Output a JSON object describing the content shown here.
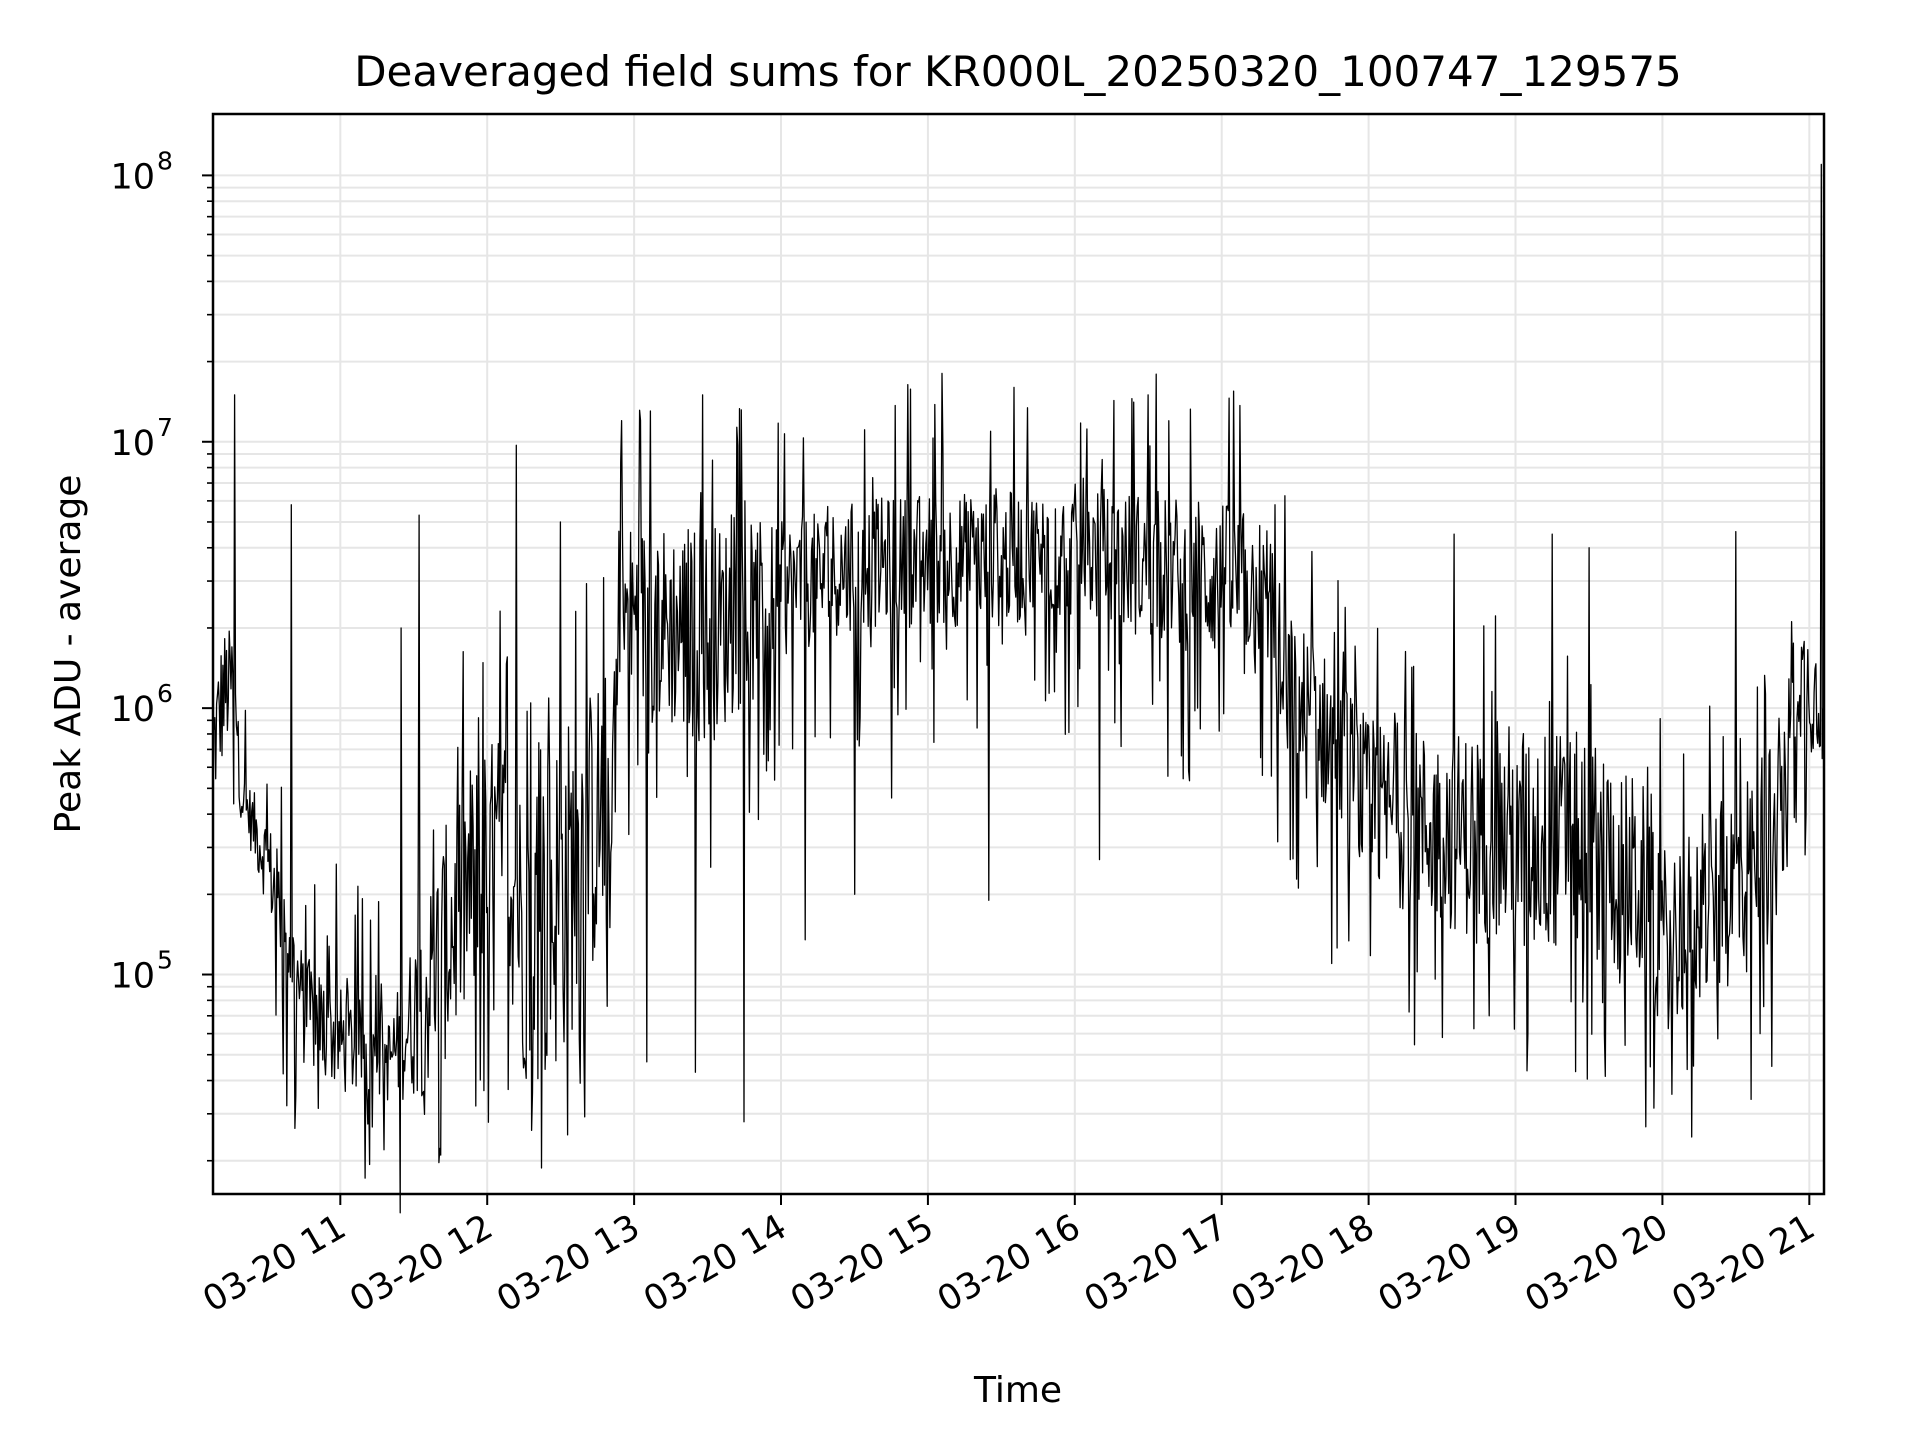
{
  "chart_data": {
    "type": "line",
    "title": "Deaveraged field sums for KR000L_20250320_100747_129575",
    "xlabel": "Time",
    "ylabel": "Peak ADU - average",
    "yscale": "log",
    "grid": true,
    "legend": "none",
    "xlim": [
      "2025-03-20 10:08",
      "2025-03-20 21:06"
    ],
    "ylim": [
      15000,
      170000000
    ],
    "x_ticks": [
      {
        "value": "2025-03-20 11:00",
        "label": "03-20 11"
      },
      {
        "value": "2025-03-20 12:00",
        "label": "03-20 12"
      },
      {
        "value": "2025-03-20 13:00",
        "label": "03-20 13"
      },
      {
        "value": "2025-03-20 14:00",
        "label": "03-20 14"
      },
      {
        "value": "2025-03-20 15:00",
        "label": "03-20 15"
      },
      {
        "value": "2025-03-20 16:00",
        "label": "03-20 16"
      },
      {
        "value": "2025-03-20 17:00",
        "label": "03-20 17"
      },
      {
        "value": "2025-03-20 18:00",
        "label": "03-20 18"
      },
      {
        "value": "2025-03-20 19:00",
        "label": "03-20 19"
      },
      {
        "value": "2025-03-20 20:00",
        "label": "03-20 20"
      },
      {
        "value": "2025-03-20 21:00",
        "label": "03-20 21"
      }
    ],
    "y_ticks": [
      {
        "value": 100000,
        "base": "10",
        "exp": "5"
      },
      {
        "value": 1000000,
        "base": "10",
        "exp": "6"
      },
      {
        "value": 10000000,
        "base": "10",
        "exp": "7"
      },
      {
        "value": 100000000,
        "base": "10",
        "exp": "8"
      }
    ],
    "line_color": "#000000",
    "grid_color": "#e6e6e6",
    "series": [
      {
        "envelope": [
          [
            "2025-03-20 10:08",
            400000,
            1200000
          ],
          [
            "2025-03-20 10:12",
            600000,
            2000000
          ],
          [
            "2025-03-20 10:17",
            900000,
            2000000
          ],
          [
            "2025-03-20 10:19",
            400000,
            600000
          ],
          [
            "2025-03-20 10:30",
            180000,
            400000
          ],
          [
            "2025-03-20 10:37",
            100000,
            250000
          ],
          [
            "2025-03-20 10:45",
            45000,
            120000
          ],
          [
            "2025-03-20 11:00",
            35000,
            90000
          ],
          [
            "2025-03-20 11:20",
            33000,
            70000
          ],
          [
            "2025-03-20 11:35",
            35000,
            200000
          ],
          [
            "2025-03-20 11:50",
            60000,
            600000
          ],
          [
            "2025-03-20 12:08",
            100000,
            900000
          ],
          [
            "2025-03-20 12:15",
            40000,
            500000
          ],
          [
            "2025-03-20 12:25",
            35000,
            800000
          ],
          [
            "2025-03-20 12:35",
            60000,
            1000000
          ],
          [
            "2025-03-20 12:50",
            150000,
            1500000
          ],
          [
            "2025-03-20 12:55",
            1000000,
            5000000
          ],
          [
            "2025-03-20 13:30",
            700000,
            5000000
          ],
          [
            "2025-03-20 14:00",
            1500000,
            5000000
          ],
          [
            "2025-03-20 14:30",
            2000000,
            6000000
          ],
          [
            "2025-03-20 15:00",
            2000000,
            6500000
          ],
          [
            "2025-03-20 15:30",
            2000000,
            6500000
          ],
          [
            "2025-03-20 16:00",
            2200000,
            7000000
          ],
          [
            "2025-03-20 16:30",
            1800000,
            6500000
          ],
          [
            "2025-03-20 17:00",
            1500000,
            6000000
          ],
          [
            "2025-03-20 17:20",
            1500000,
            5000000
          ],
          [
            "2025-03-20 17:25",
            500000,
            2500000
          ],
          [
            "2025-03-20 17:45",
            400000,
            1500000
          ],
          [
            "2025-03-20 18:00",
            200000,
            900000
          ],
          [
            "2025-03-20 18:30",
            150000,
            800000
          ],
          [
            "2025-03-20 19:00",
            120000,
            900000
          ],
          [
            "2025-03-20 19:30",
            120000,
            800000
          ],
          [
            "2025-03-20 19:55",
            80000,
            500000
          ],
          [
            "2025-03-20 20:00",
            60000,
            300000
          ],
          [
            "2025-03-20 20:20",
            80000,
            400000
          ],
          [
            "2025-03-20 20:40",
            100000,
            700000
          ],
          [
            "2025-03-20 20:50",
            200000,
            900000
          ],
          [
            "2025-03-20 20:53",
            800000,
            2500000
          ],
          [
            "2025-03-20 21:06",
            600000,
            1800000
          ]
        ],
        "spikes": [
          [
            "2025-03-20 10:17",
            15000000
          ],
          [
            "2025-03-20 10:40",
            5800000
          ],
          [
            "2025-03-20 11:25",
            2000000
          ],
          [
            "2025-03-20 11:32",
            5300000
          ],
          [
            "2025-03-20 11:41",
            21000
          ],
          [
            "2025-03-20 12:12",
            9700000
          ],
          [
            "2025-03-20 12:18",
            26000
          ],
          [
            "2025-03-20 12:30",
            5000000
          ],
          [
            "2025-03-20 12:33",
            25000
          ],
          [
            "2025-03-20 12:55",
            12000000
          ],
          [
            "2025-03-20 13:05",
            47000
          ],
          [
            "2025-03-20 13:25",
            43000
          ],
          [
            "2025-03-20 13:28",
            15000000
          ],
          [
            "2025-03-20 13:45",
            28000
          ],
          [
            "2025-03-20 14:10",
            135000
          ],
          [
            "2025-03-20 14:30",
            200000
          ],
          [
            "2025-03-20 14:45",
            460000
          ],
          [
            "2025-03-20 15:25",
            190000
          ],
          [
            "2025-03-20 15:35",
            16000000
          ],
          [
            "2025-03-20 16:10",
            270000
          ],
          [
            "2025-03-20 16:30",
            15000000
          ],
          [
            "2025-03-20 16:50",
            1000000
          ],
          [
            "2025-03-20 17:05",
            15500000
          ],
          [
            "2025-03-20 17:28",
            270000
          ],
          [
            "2025-03-20 17:45",
            110000
          ],
          [
            "2025-03-20 18:30",
            58000
          ],
          [
            "2025-03-20 18:35",
            4500000
          ],
          [
            "2025-03-20 19:05",
            60000
          ],
          [
            "2025-03-20 19:15",
            4500000
          ],
          [
            "2025-03-20 19:30",
            4000000
          ],
          [
            "2025-03-20 19:55",
            45000
          ],
          [
            "2025-03-20 20:10",
            44000
          ],
          [
            "2025-03-20 20:30",
            4600000
          ],
          [
            "2025-03-20 20:40",
            60000
          ],
          [
            "2025-03-20 21:05",
            110000000
          ]
        ]
      }
    ]
  }
}
